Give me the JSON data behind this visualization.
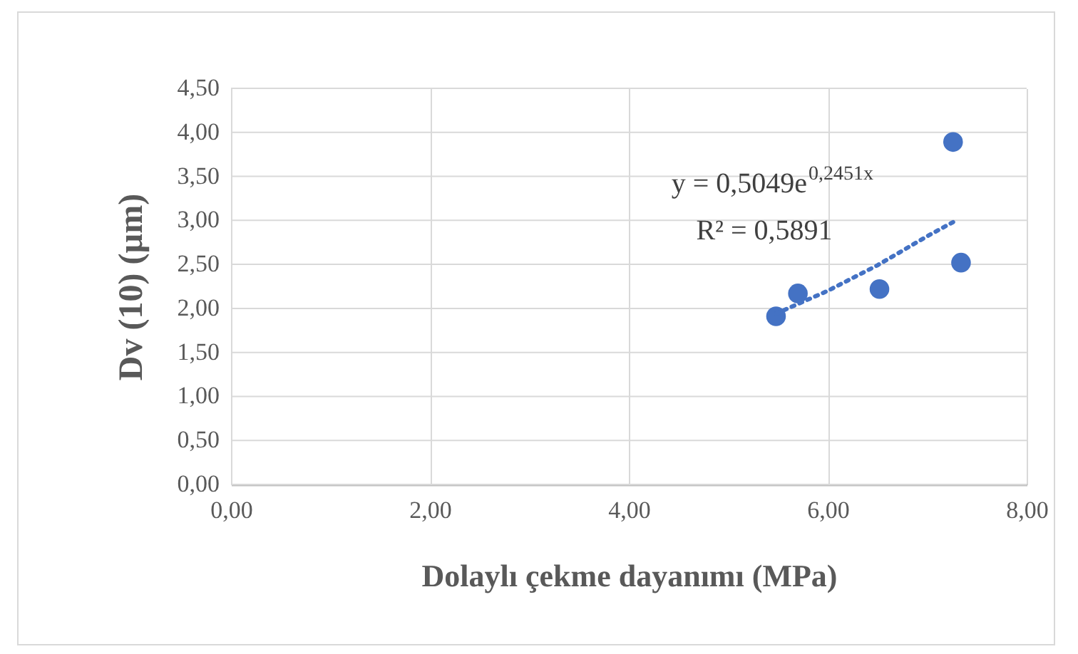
{
  "chart_data": {
    "type": "scatter",
    "xlabel": "Dolaylı çekme dayanımı (MPa)",
    "ylabel": "Dv (10) (µm)",
    "xlim": [
      0,
      8
    ],
    "xticks": [
      {
        "value": 0,
        "label": "0,00"
      },
      {
        "value": 2,
        "label": "2,00"
      },
      {
        "value": 4,
        "label": "4,00"
      },
      {
        "value": 6,
        "label": "6,00"
      },
      {
        "value": 8,
        "label": "8,00"
      }
    ],
    "ylim": [
      0,
      4.5
    ],
    "yticks": [
      {
        "value": 0,
        "label": "0,00"
      },
      {
        "value": 0.5,
        "label": "0,50"
      },
      {
        "value": 1,
        "label": "1,00"
      },
      {
        "value": 1.5,
        "label": "1,50"
      },
      {
        "value": 2,
        "label": "2,00"
      },
      {
        "value": 2.5,
        "label": "2,50"
      },
      {
        "value": 3,
        "label": "3,00"
      },
      {
        "value": 3.5,
        "label": "3,50"
      },
      {
        "value": 4,
        "label": "4,00"
      },
      {
        "value": 4.5,
        "label": "4,50"
      }
    ],
    "grid": true,
    "series": [
      {
        "color": "#4472c4",
        "marker": "circle",
        "x": [
          5.48,
          5.7,
          6.52,
          7.26,
          7.34
        ],
        "values": [
          1.91,
          2.17,
          2.22,
          3.89,
          2.52
        ]
      },
      {
        "type": "line",
        "color": "#4472c4",
        "marker": "none",
        "line_style": "dotted",
        "x": [
          5.48,
          6.0,
          6.5,
          7.0,
          7.26
        ],
        "values": [
          1.94,
          2.2,
          2.49,
          2.82,
          2.98
        ]
      }
    ],
    "annotations": [
      "y = 0,5049e$^{0,2451x}$",
      "R² = 0,5891"
    ]
  }
}
